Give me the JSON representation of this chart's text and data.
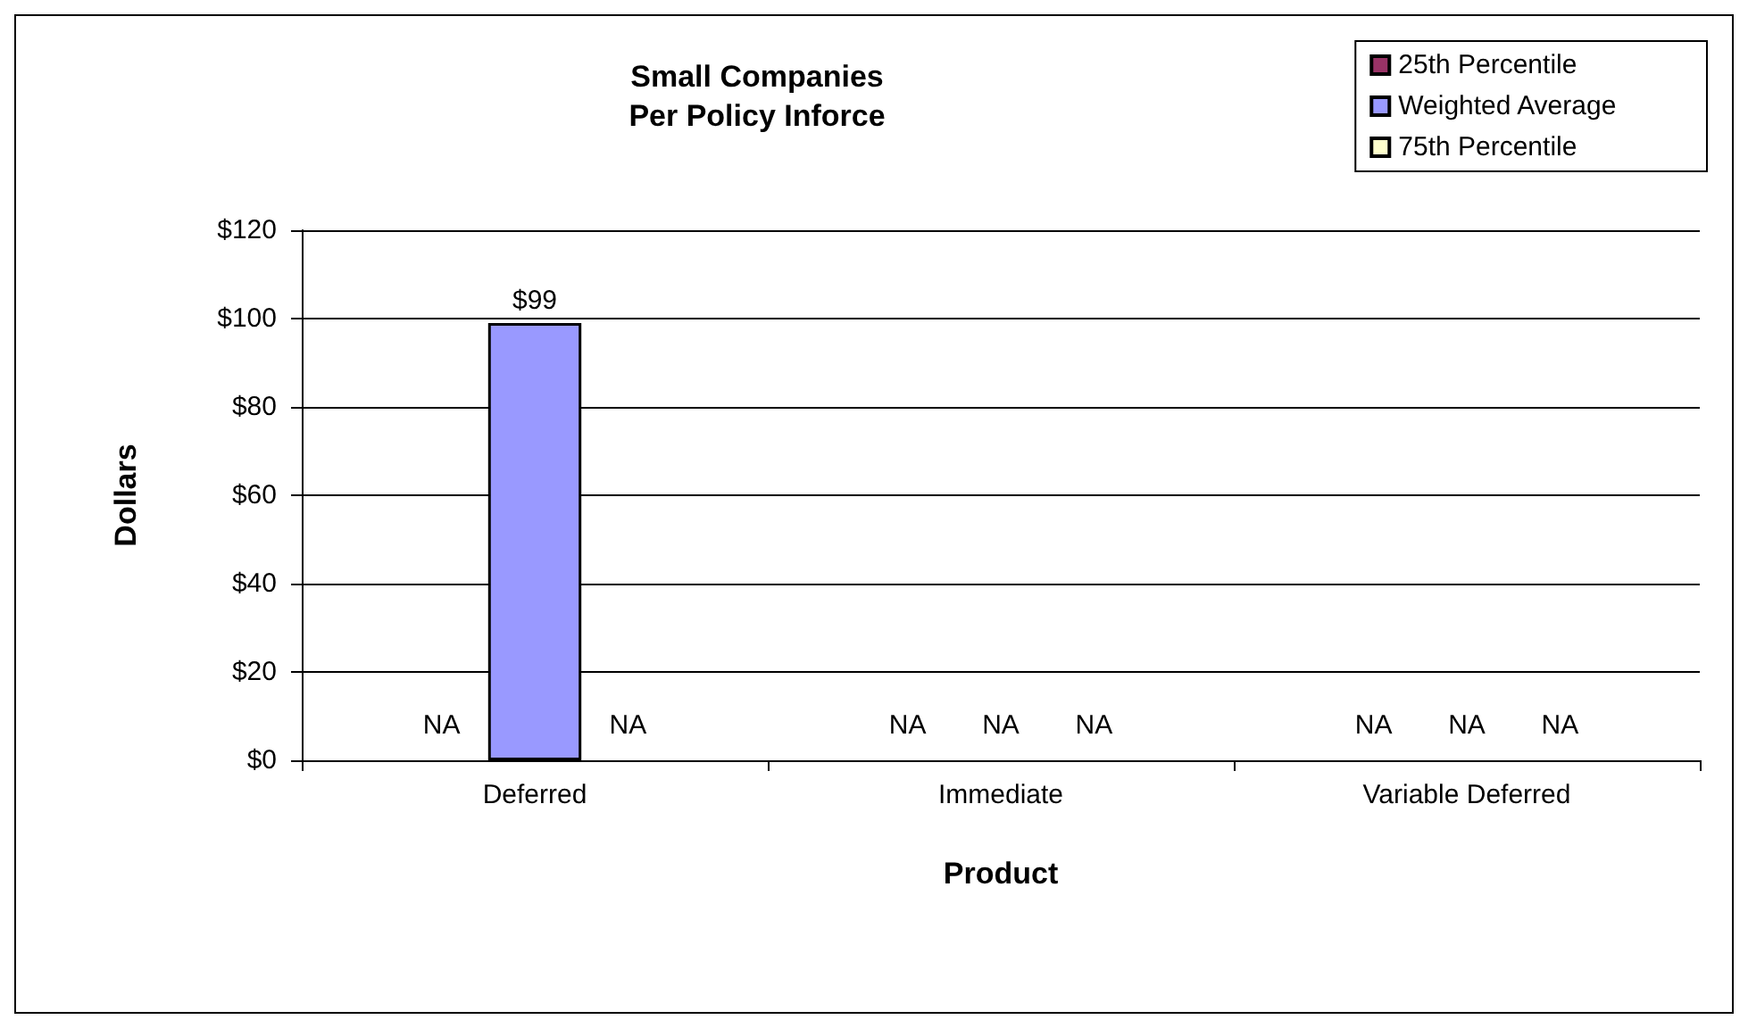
{
  "chart_data": {
    "type": "bar",
    "title": "Small Companies\nPer Policy Inforce",
    "xlabel": "Product",
    "ylabel": "Dollars",
    "categories": [
      "Deferred",
      "Immediate",
      "Variable Deferred"
    ],
    "series": [
      {
        "name": "25th Percentile",
        "color": "#993366",
        "values": [
          null,
          null,
          null
        ],
        "value_labels": [
          "NA",
          "NA",
          "NA"
        ]
      },
      {
        "name": "Weighted Average",
        "color": "#9999ff",
        "values": [
          99,
          null,
          null
        ],
        "value_labels": [
          "$99",
          "NA",
          "NA"
        ]
      },
      {
        "name": "75th Percentile",
        "color": "#ffffcc",
        "values": [
          null,
          null,
          null
        ],
        "value_labels": [
          "NA",
          "NA",
          "NA"
        ]
      }
    ],
    "ylim": [
      0,
      120
    ],
    "yticks": [
      {
        "value": 0,
        "label": "$0"
      },
      {
        "value": 20,
        "label": "$20"
      },
      {
        "value": 40,
        "label": "$40"
      },
      {
        "value": 60,
        "label": "$60"
      },
      {
        "value": 80,
        "label": "$80"
      },
      {
        "value": 100,
        "label": "$100"
      },
      {
        "value": 120,
        "label": "$120"
      }
    ],
    "grid": "y",
    "legend": "top right"
  }
}
